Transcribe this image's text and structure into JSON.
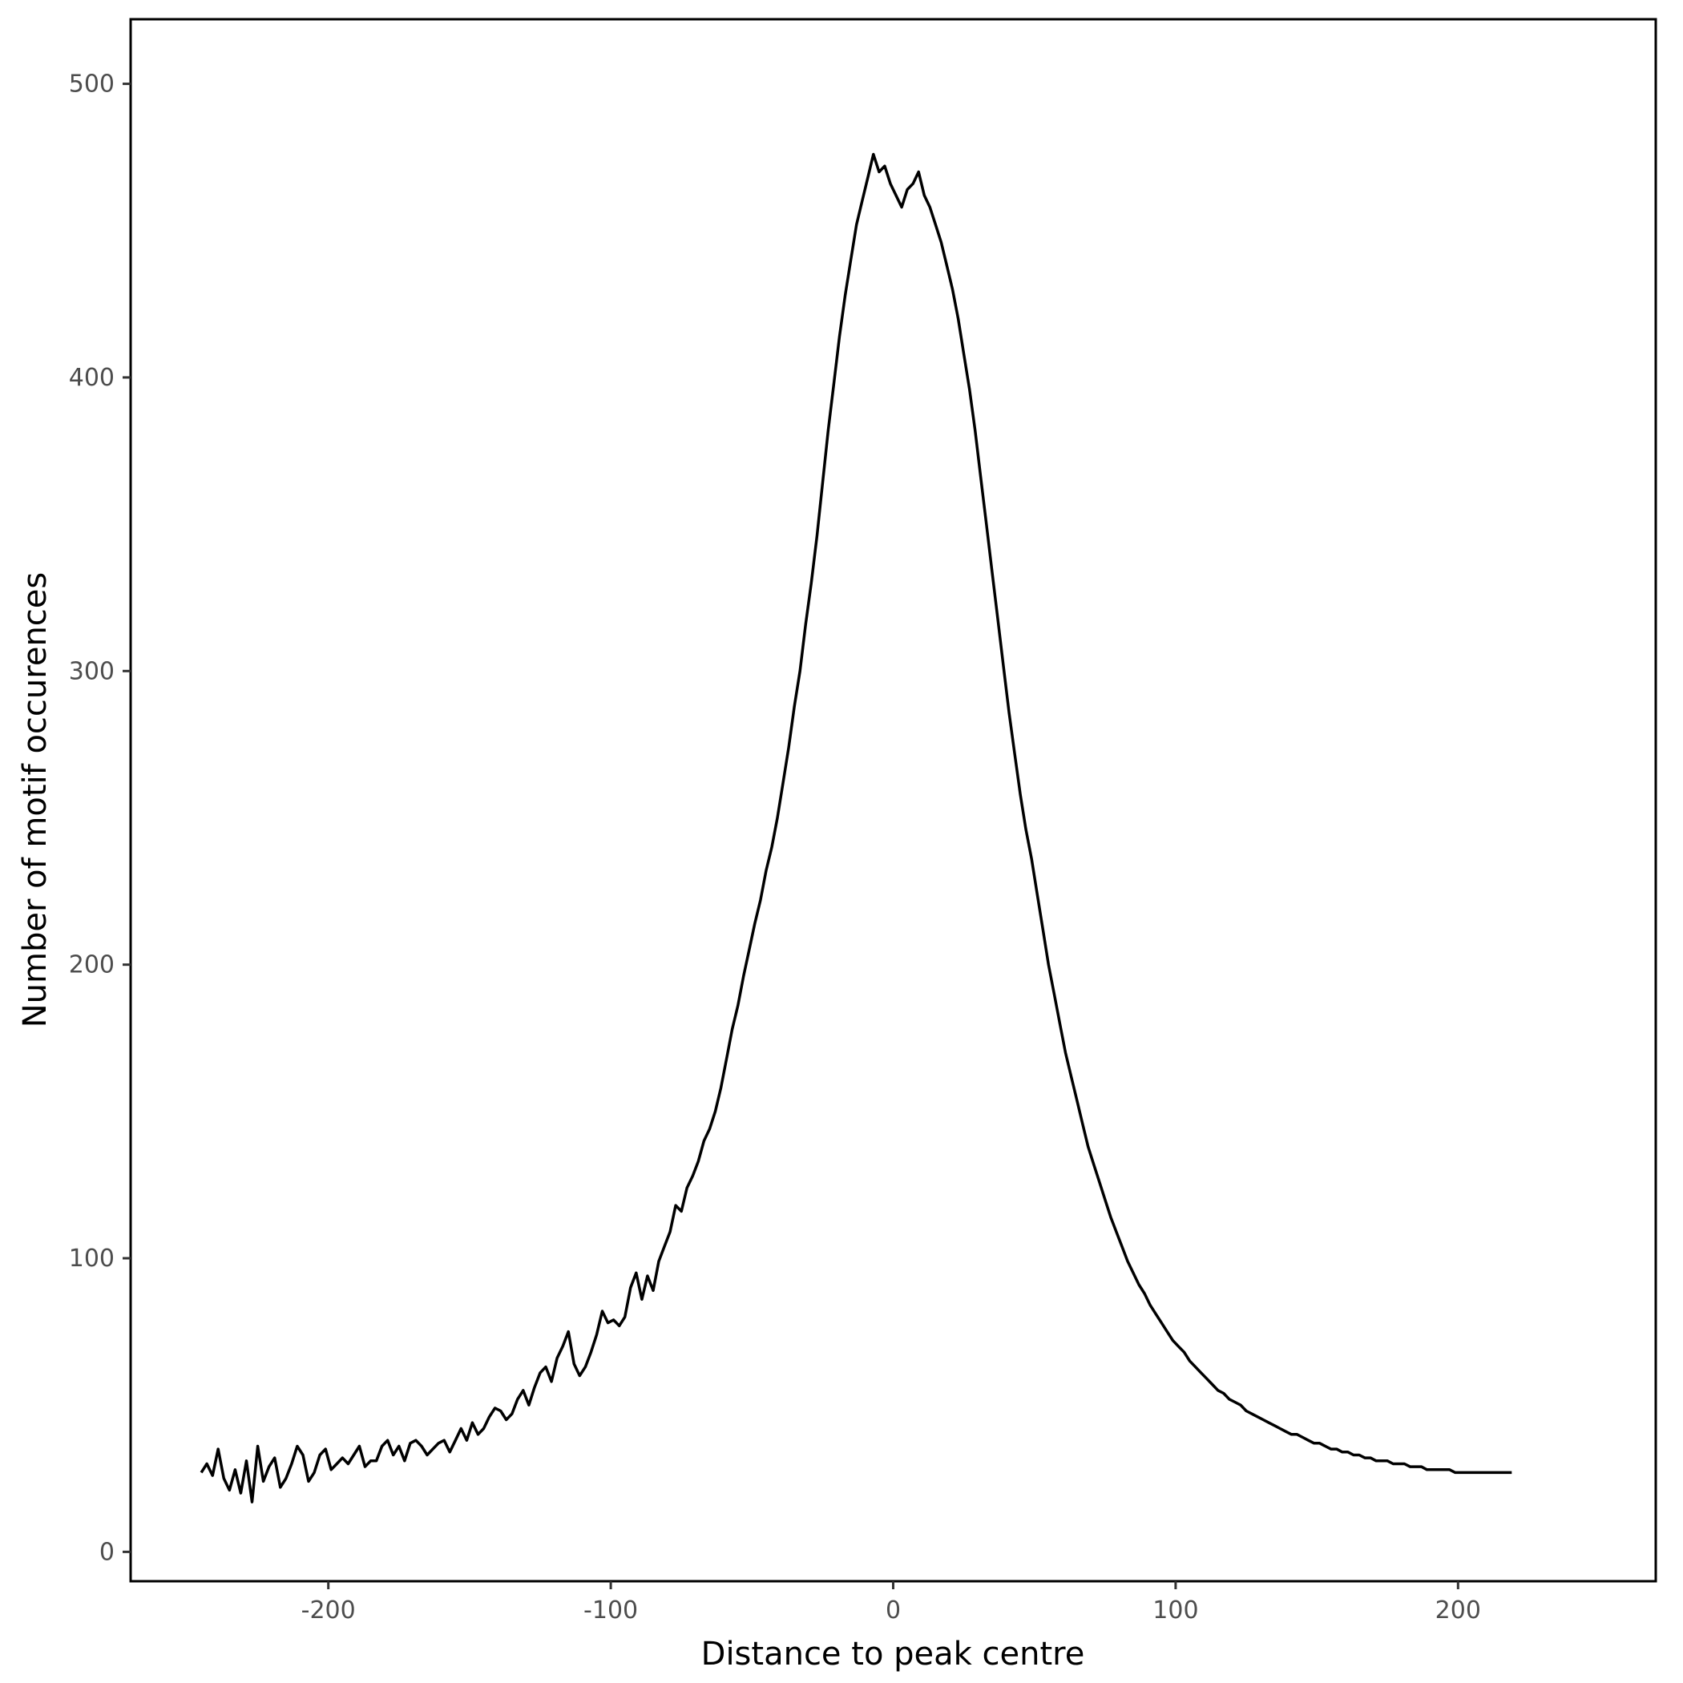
{
  "chart_data": {
    "type": "line",
    "title": "",
    "xlabel": "Distance to peak centre",
    "ylabel": "Number of motif occurences",
    "xlim": [
      -270,
      270
    ],
    "ylim": [
      -10,
      522
    ],
    "xticks": [
      -200,
      -100,
      0,
      100,
      200
    ],
    "xtick_labels": [
      "-200",
      "-100",
      "0",
      "100",
      "200"
    ],
    "yticks": [
      0,
      100,
      200,
      300,
      400,
      500
    ],
    "ytick_labels": [
      "0",
      "100",
      "200",
      "300",
      "400",
      "500"
    ],
    "grid": false,
    "legend": "none",
    "line_color": "#000000",
    "series": [
      {
        "x_start": -245,
        "x_step": 2,
        "values": [
          27,
          30,
          26,
          35,
          25,
          21,
          28,
          20,
          31,
          17,
          36,
          24,
          29,
          32,
          22,
          25,
          30,
          36,
          33,
          24,
          27,
          33,
          35,
          28,
          30,
          32,
          30,
          33,
          36,
          29,
          31,
          31,
          36,
          38,
          33,
          36,
          31,
          37,
          38,
          36,
          33,
          35,
          37,
          38,
          34,
          38,
          42,
          38,
          44,
          40,
          42,
          46,
          49,
          48,
          45,
          47,
          52,
          55,
          50,
          56,
          61,
          63,
          58,
          66,
          70,
          75,
          64,
          60,
          63,
          68,
          74,
          82,
          78,
          79,
          77,
          80,
          90,
          95,
          86,
          94,
          89,
          99,
          104,
          109,
          118,
          116,
          124,
          128,
          133,
          140,
          144,
          150,
          158,
          168,
          178,
          186,
          196,
          205,
          214,
          222,
          232,
          240,
          250,
          262,
          274,
          288,
          300,
          316,
          330,
          346,
          364,
          382,
          398,
          414,
          428,
          440,
          452,
          460,
          468,
          476,
          470,
          472,
          466,
          462,
          458,
          464,
          466,
          470,
          462,
          458,
          452,
          446,
          438,
          430,
          420,
          408,
          396,
          382,
          366,
          350,
          334,
          318,
          302,
          286,
          272,
          258,
          246,
          236,
          224,
          212,
          200,
          190,
          180,
          170,
          162,
          154,
          146,
          138,
          132,
          126,
          120,
          114,
          109,
          104,
          99,
          95,
          91,
          88,
          84,
          81,
          78,
          75,
          72,
          70,
          68,
          65,
          63,
          61,
          59,
          57,
          55,
          54,
          52,
          51,
          50,
          48,
          47,
          46,
          45,
          44,
          43,
          42,
          41,
          40,
          40,
          39,
          38,
          37,
          37,
          36,
          35,
          35,
          34,
          34,
          33,
          33,
          32,
          32,
          31,
          31,
          31,
          30,
          30,
          30,
          29,
          29,
          29,
          28,
          28,
          28,
          28,
          28,
          27,
          27,
          27,
          27,
          27,
          27,
          27,
          27,
          27,
          27,
          27
        ]
      }
    ]
  }
}
